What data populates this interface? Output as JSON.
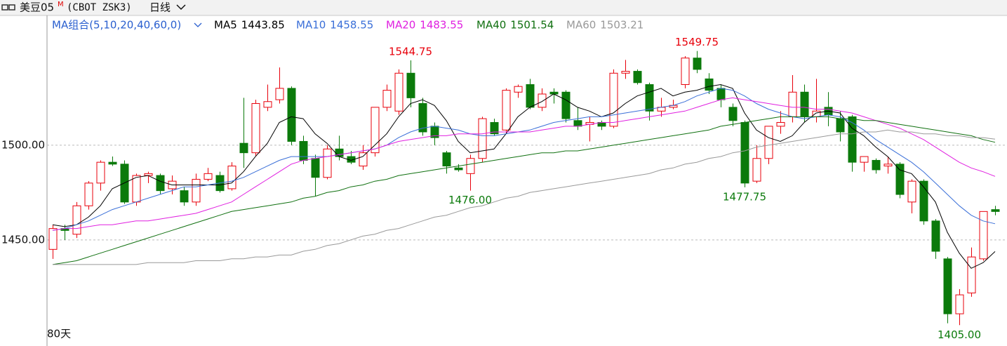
{
  "chart_data": {
    "type": "candlestick",
    "title": "美豆05",
    "title_superscript": "M",
    "subtitle": "(CBOT ZSK3)",
    "period": "日线",
    "ma_label": "MA组合(5,10,20,40,60,0)",
    "span_label": "80天",
    "ylim": [
      1394,
      1567
    ],
    "yticks": [
      {
        "value": 1450,
        "label": "1450.00"
      },
      {
        "value": 1500,
        "label": "1500.00"
      }
    ],
    "grid": true,
    "up_color": "#e8000b",
    "down_color": "#0b7a0b",
    "open": [
      1445,
      1456,
      1453,
      1468,
      1480,
      1491,
      1490,
      1470,
      1484,
      1484,
      1477,
      1476,
      1470,
      1482,
      1484,
      1477,
      1501,
      1496,
      1520,
      1524,
      1530,
      1502,
      1493,
      1483,
      1498,
      1494,
      1489,
      1496,
      1520,
      1518,
      1538,
      1522,
      1510,
      1496,
      1488,
      1485,
      1493,
      1512,
      1508,
      1528,
      1532,
      1520,
      1528,
      1528,
      1513,
      1511,
      1512,
      1510,
      1538,
      1539,
      1532,
      1518,
      1520,
      1532,
      1546,
      1535,
      1530,
      1520,
      1512,
      1481,
      1493,
      1510,
      1515,
      1528,
      1515,
      1520,
      1514,
      1515,
      1491,
      1492,
      1489,
      1490,
      1470,
      1481,
      1460,
      1440,
      1411,
      1422,
      1440,
      1466
    ],
    "high": [
      1458,
      1458,
      1470,
      1481,
      1492,
      1494,
      1492,
      1485,
      1486,
      1485,
      1484,
      1478,
      1485,
      1488,
      1486,
      1491,
      1525,
      1524,
      1532,
      1541,
      1531,
      1505,
      1495,
      1500,
      1505,
      1497,
      1500,
      1520,
      1532,
      1540,
      1544.75,
      1525,
      1512,
      1497,
      1490,
      1495,
      1515,
      1514,
      1530,
      1532,
      1535,
      1530,
      1530,
      1529,
      1520,
      1515,
      1513,
      1540,
      1545,
      1540,
      1533,
      1525,
      1524,
      1547,
      1549.75,
      1538,
      1532,
      1522,
      1513,
      1500,
      1510,
      1518,
      1537,
      1532,
      1535,
      1528,
      1518,
      1516,
      1494,
      1493,
      1494,
      1491,
      1482,
      1482,
      1461,
      1441,
      1424,
      1446,
      1465,
      1468
    ],
    "low": [
      1440,
      1450,
      1451,
      1466,
      1476,
      1489,
      1469,
      1468,
      1480,
      1474,
      1474,
      1468,
      1468,
      1481,
      1475,
      1476,
      1488,
      1494,
      1518,
      1522,
      1500,
      1490,
      1473,
      1482,
      1492,
      1490,
      1487,
      1494,
      1518,
      1516,
      1520,
      1505,
      1500,
      1485,
      1486,
      1476,
      1491,
      1505,
      1506,
      1525,
      1519,
      1518,
      1522,
      1512,
      1508,
      1502,
      1508,
      1509,
      1535,
      1532,
      1513,
      1515,
      1519,
      1530,
      1538,
      1527,
      1520,
      1510,
      1477.75,
      1480,
      1490,
      1506,
      1512,
      1512,
      1512,
      1510,
      1502,
      1486,
      1486,
      1485,
      1485,
      1472,
      1464,
      1458,
      1440,
      1406,
      1405,
      1420,
      1439,
      1463
    ],
    "close": [
      1456,
      1455,
      1468,
      1480,
      1491,
      1490,
      1470,
      1484,
      1485,
      1476,
      1481,
      1470,
      1482,
      1485,
      1476,
      1489,
      1496,
      1522,
      1523,
      1530,
      1502,
      1492,
      1483,
      1498,
      1494,
      1491,
      1496,
      1520,
      1529,
      1538,
      1525,
      1507,
      1504,
      1489,
      1487,
      1493,
      1514,
      1506,
      1529,
      1531,
      1520,
      1527,
      1527,
      1514,
      1510,
      1512,
      1510,
      1538,
      1539,
      1533,
      1518,
      1520,
      1521,
      1546,
      1540,
      1529,
      1524,
      1513,
      1480,
      1493,
      1510,
      1512,
      1528,
      1515,
      1518,
      1516,
      1507,
      1491,
      1494,
      1487,
      1490,
      1474,
      1481,
      1460,
      1444,
      1411,
      1421,
      1441,
      1465,
      1465
    ],
    "high_labels": [
      null,
      null,
      null,
      null,
      null,
      null,
      null,
      null,
      null,
      null,
      null,
      null,
      null,
      null,
      null,
      null,
      null,
      null,
      null,
      null,
      null,
      null,
      null,
      null,
      null,
      null,
      null,
      null,
      null,
      null,
      "1544.75",
      null,
      null,
      null,
      null,
      null,
      null,
      null,
      null,
      null,
      null,
      null,
      null,
      null,
      null,
      null,
      null,
      null,
      null,
      null,
      null,
      null,
      null,
      null,
      "1549.75",
      null,
      null,
      null,
      null,
      null,
      null,
      null,
      null,
      null,
      null,
      null,
      null,
      null,
      null,
      null,
      null,
      null,
      null,
      null,
      null,
      null,
      null,
      null,
      null,
      null
    ],
    "low_labels": [
      null,
      null,
      null,
      null,
      null,
      null,
      null,
      null,
      null,
      null,
      null,
      null,
      null,
      null,
      null,
      null,
      null,
      null,
      null,
      null,
      null,
      null,
      null,
      null,
      null,
      null,
      null,
      null,
      null,
      null,
      null,
      null,
      null,
      null,
      null,
      "1476.00",
      null,
      null,
      null,
      null,
      null,
      null,
      null,
      null,
      null,
      null,
      null,
      null,
      null,
      null,
      null,
      null,
      null,
      null,
      null,
      null,
      null,
      null,
      "1477.75",
      null,
      null,
      null,
      null,
      null,
      null,
      null,
      null,
      null,
      null,
      null,
      null,
      null,
      null,
      null,
      null,
      null,
      "1405.00",
      null,
      null,
      null
    ],
    "series": [
      {
        "name": "MA5",
        "color": "#000000",
        "values": [
          1458,
          1457,
          1458,
          1462,
          1468,
          1477,
          1480,
          1483,
          1484,
          1481,
          1479,
          1479,
          1479,
          1479,
          1479,
          1480,
          1486,
          1494,
          1501,
          1512,
          1515,
          1514,
          1506,
          1501,
          1494,
          1492,
          1494,
          1500,
          1506,
          1515,
          1522,
          1524,
          1521,
          1513,
          1502,
          1496,
          1497,
          1498,
          1506,
          1515,
          1520,
          1523,
          1527,
          1524,
          1520,
          1518,
          1515,
          1517,
          1522,
          1526,
          1528,
          1530,
          1526,
          1528,
          1529,
          1531,
          1532,
          1530,
          1517,
          1508,
          1504,
          1502,
          1505,
          1512,
          1517,
          1518,
          1517,
          1509,
          1505,
          1499,
          1494,
          1487,
          1485,
          1478,
          1470,
          1454,
          1443,
          1435,
          1438,
          1443.85
        ]
      },
      {
        "name": "MA10",
        "color": "#3a6fd8",
        "values": [
          1455,
          1456,
          1458,
          1460,
          1463,
          1466,
          1468,
          1470,
          1472,
          1474,
          1476,
          1478,
          1478,
          1479,
          1480,
          1481,
          1483,
          1486,
          1489,
          1492,
          1494,
          1494,
          1494,
          1494,
          1495,
          1496,
          1497,
          1498,
          1500,
          1504,
          1507,
          1509,
          1510,
          1509,
          1508,
          1506,
          1505,
          1505,
          1506,
          1507,
          1508,
          1510,
          1512,
          1513,
          1514,
          1515,
          1515,
          1516,
          1517,
          1518,
          1519,
          1520,
          1521,
          1523,
          1526,
          1528,
          1530,
          1529,
          1526,
          1522,
          1519,
          1517,
          1515,
          1514,
          1515,
          1516,
          1515,
          1512,
          1508,
          1503,
          1499,
          1495,
          1491,
          1486,
          1480,
          1474,
          1468,
          1463,
          1460,
          1458.55
        ]
      },
      {
        "name": "MA20",
        "color": "#e020e0",
        "values": [
          1455,
          1456,
          1456,
          1457,
          1458,
          1458,
          1459,
          1460,
          1460,
          1461,
          1462,
          1463,
          1464,
          1466,
          1468,
          1470,
          1474,
          1478,
          1482,
          1486,
          1490,
          1492,
          1493,
          1494,
          1495,
          1496,
          1497,
          1498,
          1500,
          1502,
          1503,
          1504,
          1505,
          1505,
          1506,
          1506,
          1506,
          1507,
          1507,
          1507,
          1507,
          1508,
          1509,
          1510,
          1510,
          1511,
          1512,
          1512,
          1513,
          1514,
          1515,
          1516,
          1517,
          1518,
          1520,
          1522,
          1524,
          1525,
          1524,
          1523,
          1522,
          1521,
          1520,
          1520,
          1519,
          1519,
          1518,
          1517,
          1515,
          1513,
          1511,
          1509,
          1506,
          1503,
          1499,
          1495,
          1491,
          1488,
          1486,
          1483.55
        ]
      },
      {
        "name": "MA40",
        "color": "#107010",
        "values": [
          1437,
          1438,
          1439,
          1441,
          1443,
          1445,
          1447,
          1449,
          1451,
          1453,
          1455,
          1457,
          1459,
          1461,
          1463,
          1465,
          1466,
          1467,
          1468,
          1469,
          1470,
          1472,
          1473,
          1475,
          1476,
          1478,
          1479,
          1481,
          1482,
          1484,
          1485,
          1486,
          1487,
          1488,
          1489,
          1490,
          1491,
          1492,
          1493,
          1494,
          1495,
          1496,
          1496,
          1497,
          1497,
          1498,
          1499,
          1500,
          1501,
          1502,
          1503,
          1504,
          1505,
          1506,
          1507,
          1508,
          1510,
          1511,
          1512,
          1513,
          1514,
          1515,
          1515,
          1515,
          1515,
          1515,
          1514,
          1514,
          1513,
          1513,
          1512,
          1511,
          1510,
          1509,
          1508,
          1507,
          1506,
          1505,
          1503,
          1501.54
        ]
      },
      {
        "name": "MA60",
        "color": "#999999",
        "values": [
          1437,
          1437,
          1437,
          1437,
          1437,
          1437,
          1437,
          1437,
          1438,
          1438,
          1438,
          1438,
          1439,
          1439,
          1439,
          1440,
          1440,
          1441,
          1441,
          1442,
          1442,
          1444,
          1445,
          1447,
          1448,
          1450,
          1452,
          1453,
          1455,
          1456,
          1458,
          1460,
          1462,
          1463,
          1465,
          1467,
          1468,
          1470,
          1472,
          1473,
          1475,
          1476,
          1477,
          1478,
          1479,
          1480,
          1481,
          1482,
          1483,
          1484,
          1485,
          1487,
          1488,
          1490,
          1491,
          1493,
          1494,
          1496,
          1497,
          1499,
          1500,
          1501,
          1502,
          1503,
          1504,
          1505,
          1506,
          1506,
          1507,
          1507,
          1508,
          1507,
          1507,
          1506,
          1506,
          1505,
          1505,
          1504,
          1504,
          1503.21
        ]
      }
    ],
    "legend_colors": {
      "ma_label": "#2a5fcf"
    }
  }
}
